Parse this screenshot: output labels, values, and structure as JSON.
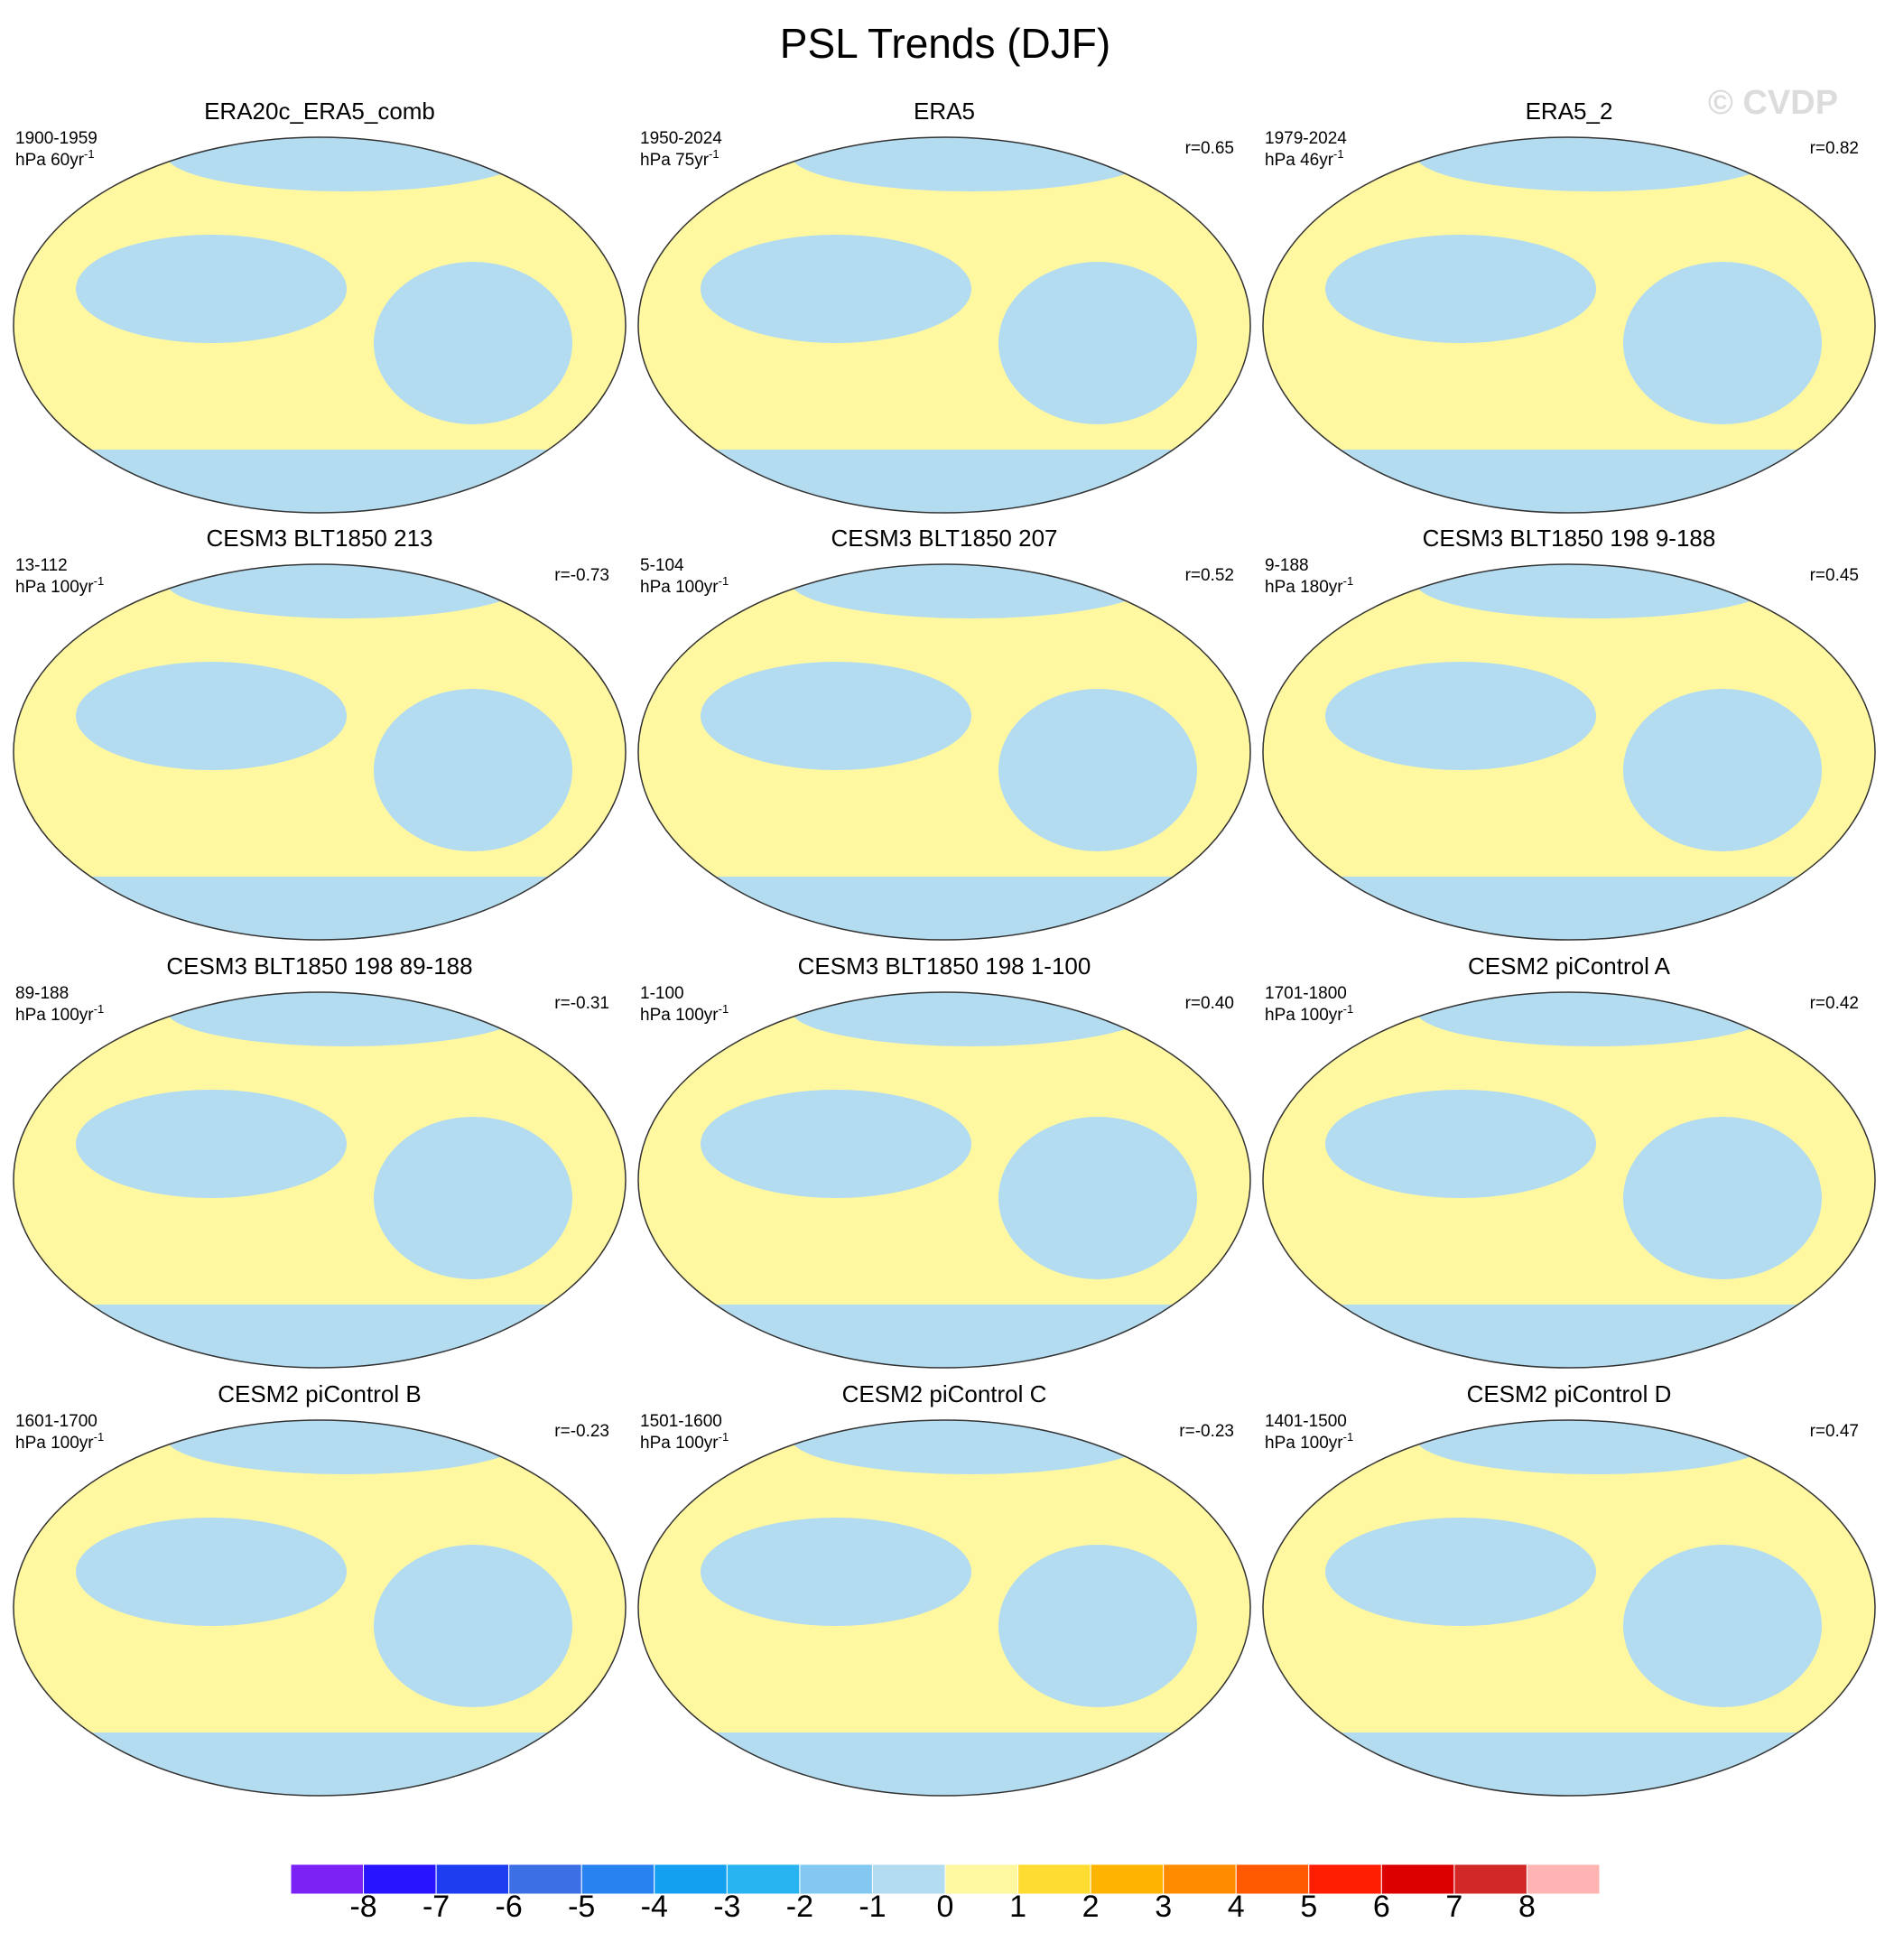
{
  "title": "PSL Trends (DJF)",
  "watermark": "© CVDP",
  "panels": [
    {
      "title": "ERA20c_ERA5_comb",
      "period": "1900-1959",
      "units": "hPa 60yr",
      "units_sup": "-1",
      "r": null
    },
    {
      "title": "ERA5",
      "period": "1950-2024",
      "units": "hPa 75yr",
      "units_sup": "-1",
      "r": "r=0.65"
    },
    {
      "title": "ERA5_2",
      "period": "1979-2024",
      "units": "hPa 46yr",
      "units_sup": "-1",
      "r": "r=0.82"
    },
    {
      "title": "CESM3 BLT1850 213",
      "period": "13-112",
      "units": "hPa 100yr",
      "units_sup": "-1",
      "r": "r=-0.73"
    },
    {
      "title": "CESM3 BLT1850 207",
      "period": "5-104",
      "units": "hPa 100yr",
      "units_sup": "-1",
      "r": "r=0.52"
    },
    {
      "title": "CESM3 BLT1850 198 9-188",
      "period": "9-188",
      "units": "hPa 180yr",
      "units_sup": "-1",
      "r": "r=0.45"
    },
    {
      "title": "CESM3 BLT1850 198 89-188",
      "period": "89-188",
      "units": "hPa 100yr",
      "units_sup": "-1",
      "r": "r=-0.31"
    },
    {
      "title": "CESM3 BLT1850 198 1-100",
      "period": "1-100",
      "units": "hPa 100yr",
      "units_sup": "-1",
      "r": "r=0.40"
    },
    {
      "title": "CESM2 piControl A",
      "period": "1701-1800",
      "units": "hPa 100yr",
      "units_sup": "-1",
      "r": "r=0.42"
    },
    {
      "title": "CESM2 piControl B",
      "period": "1601-1700",
      "units": "hPa 100yr",
      "units_sup": "-1",
      "r": "r=-0.23"
    },
    {
      "title": "CESM2 piControl C",
      "period": "1501-1600",
      "units": "hPa 100yr",
      "units_sup": "-1",
      "r": "r=-0.23"
    },
    {
      "title": "CESM2 piControl D",
      "period": "1401-1500",
      "units": "hPa 100yr",
      "units_sup": "-1",
      "r": "r=0.47"
    }
  ],
  "colorbar": {
    "colors": [
      "#7b22f5",
      "#2814ff",
      "#1e3cf0",
      "#3c6ee6",
      "#2882f0",
      "#14a0f0",
      "#28b4f0",
      "#82c8f0",
      "#b4dcf0",
      "#fff8a0",
      "#ffdc32",
      "#ffb400",
      "#ff8c00",
      "#ff5a00",
      "#ff1e00",
      "#dc0000",
      "#d22828",
      "#ffb4b4"
    ],
    "levels": [
      -8,
      -7,
      -6,
      -5,
      -4,
      -3,
      -2,
      -1,
      0,
      1,
      2,
      3,
      4,
      5,
      6,
      7,
      8
    ]
  }
}
